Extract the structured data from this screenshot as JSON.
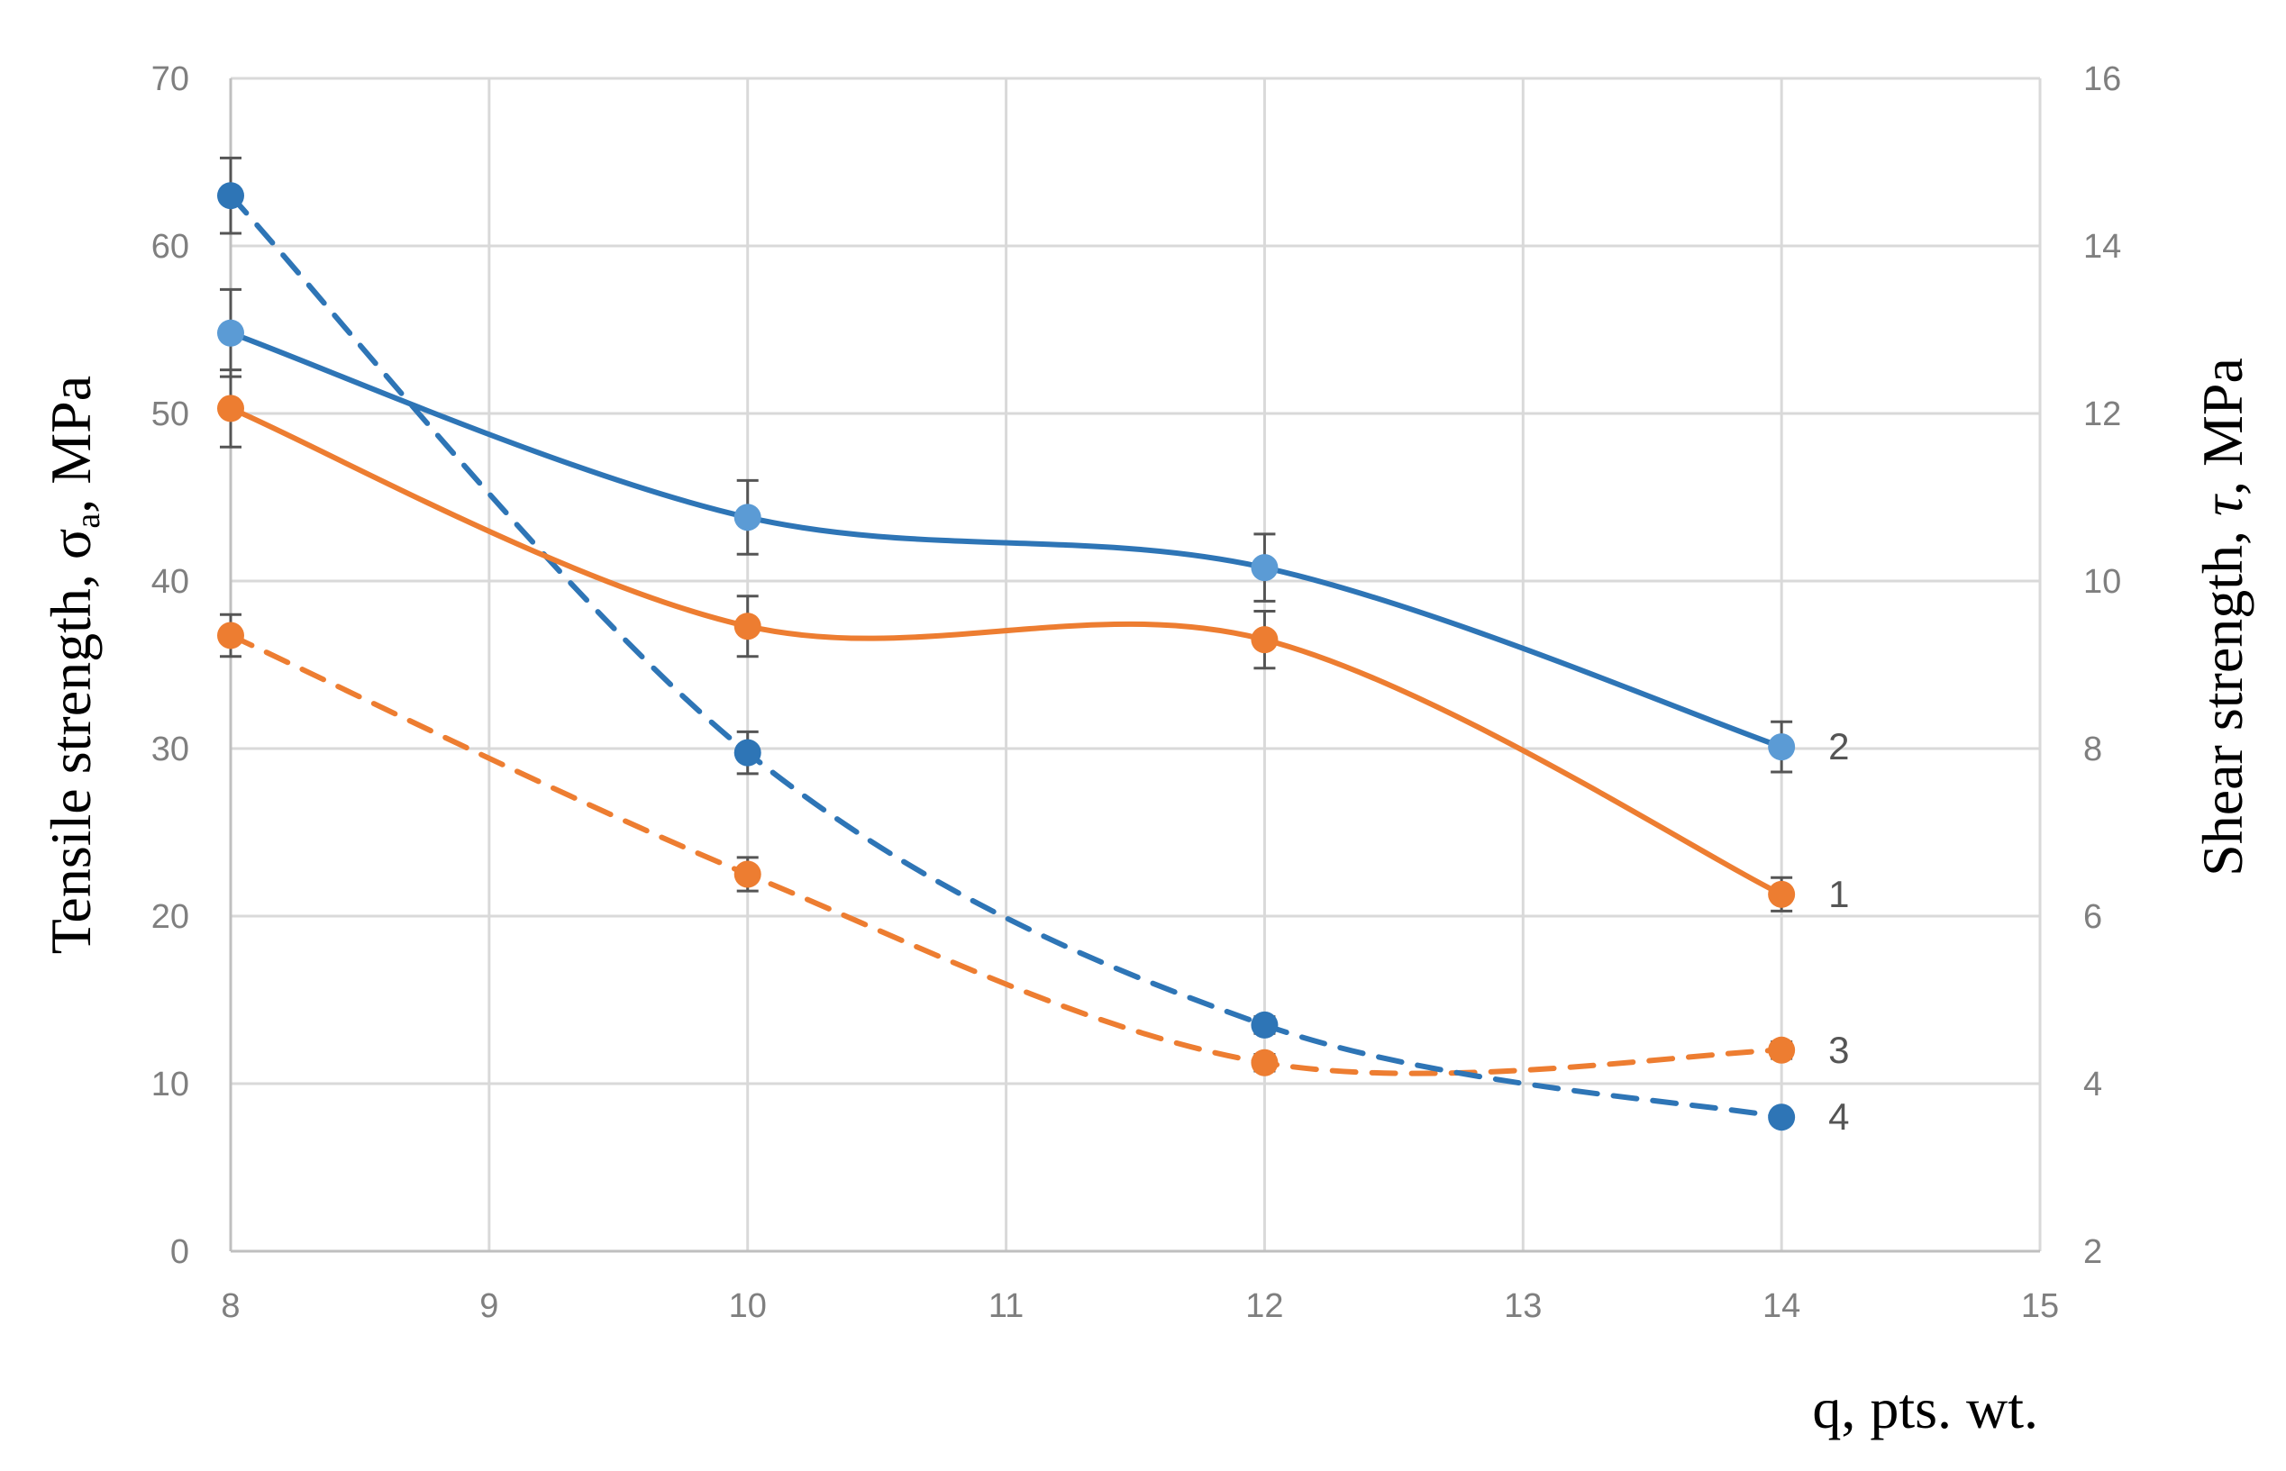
{
  "chart_data": {
    "type": "line",
    "x_axis": {
      "label": "q, pts. wt.",
      "min": 8,
      "max": 15,
      "ticks": [
        "8",
        "9",
        "10",
        "11",
        "12",
        "13",
        "14",
        "15"
      ]
    },
    "y_left": {
      "label_main": "Tensile strength, ",
      "label_sym": "σ",
      "label_sub": "a",
      "label_unit": ", MPa",
      "min": 0,
      "max": 70,
      "ticks": [
        "0",
        "10",
        "20",
        "30",
        "40",
        "50",
        "60",
        "70"
      ]
    },
    "y_right": {
      "label_main": "Shear strength, ",
      "label_sym": "τ",
      "label_unit": ", MPa",
      "min": 2,
      "max": 16,
      "ticks": [
        "2",
        "4",
        "6",
        "8",
        "10",
        "12",
        "14",
        "16"
      ]
    },
    "grid": true,
    "series": [
      {
        "label": "1",
        "axis": "left",
        "color": "#ED7D31",
        "style": "solid",
        "marker_color": "#ED7D31",
        "x": [
          8,
          10,
          12,
          14
        ],
        "y": [
          50.3,
          37.3,
          36.5,
          21.3
        ],
        "err": [
          2.3,
          1.8,
          1.7,
          1.0
        ]
      },
      {
        "label": "2",
        "axis": "left",
        "color": "#2E75B6",
        "style": "solid",
        "marker_color": "#5B9BD5",
        "x": [
          8,
          10,
          12,
          14
        ],
        "y": [
          54.8,
          43.8,
          40.8,
          30.1
        ],
        "err": [
          2.6,
          2.2,
          2.0,
          1.5
        ]
      },
      {
        "label": "3",
        "axis": "right",
        "color": "#ED7D31",
        "style": "dashed",
        "marker_color": "#ED7D31",
        "x": [
          8,
          10,
          12,
          14
        ],
        "y": [
          9.35,
          6.5,
          4.25,
          4.4
        ],
        "err": [
          0.25,
          0.2,
          0.1,
          0.1
        ]
      },
      {
        "label": "4",
        "axis": "right",
        "color": "#2E75B6",
        "style": "dashed",
        "marker_color": "#2E75B6",
        "x": [
          8,
          10,
          12,
          14
        ],
        "y": [
          14.6,
          7.95,
          4.7,
          3.6
        ],
        "err": [
          0.45,
          0.25,
          0.1,
          0.0
        ]
      }
    ]
  }
}
